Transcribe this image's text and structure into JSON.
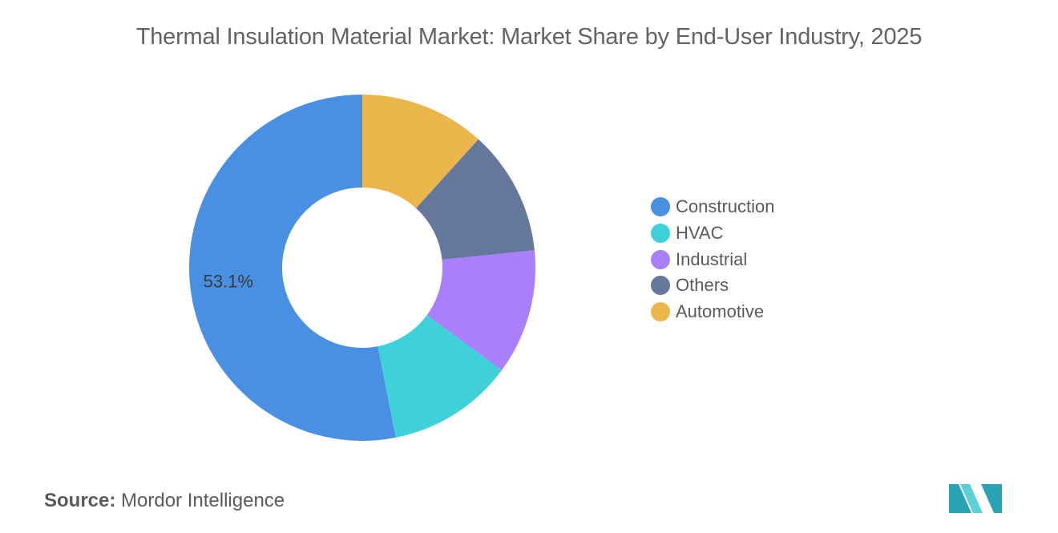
{
  "chart_data": {
    "type": "pie",
    "title": "Thermal Insulation Material Market: Market Share by End-User Industry, 2025",
    "donut": true,
    "categories": [
      "Construction",
      "HVAC",
      "Industrial",
      "Others",
      "Automotive"
    ],
    "values": [
      53.1,
      11.8,
      11.7,
      11.7,
      11.7
    ],
    "colors": [
      "#4a90e2",
      "#3fd1da",
      "#a97ffc",
      "#65789b",
      "#ebb64c"
    ],
    "data_labels": [
      "53.1%",
      "",
      "",
      "",
      ""
    ],
    "legend_position": "right",
    "start": "top, clockwise, Automotive first"
  },
  "source": {
    "key": "Source:",
    "value": "Mordor Intelligence"
  },
  "logo": {
    "name": "mordor-intelligence-logo",
    "colors": [
      "#2aa4b5",
      "#5ad0d7"
    ]
  }
}
